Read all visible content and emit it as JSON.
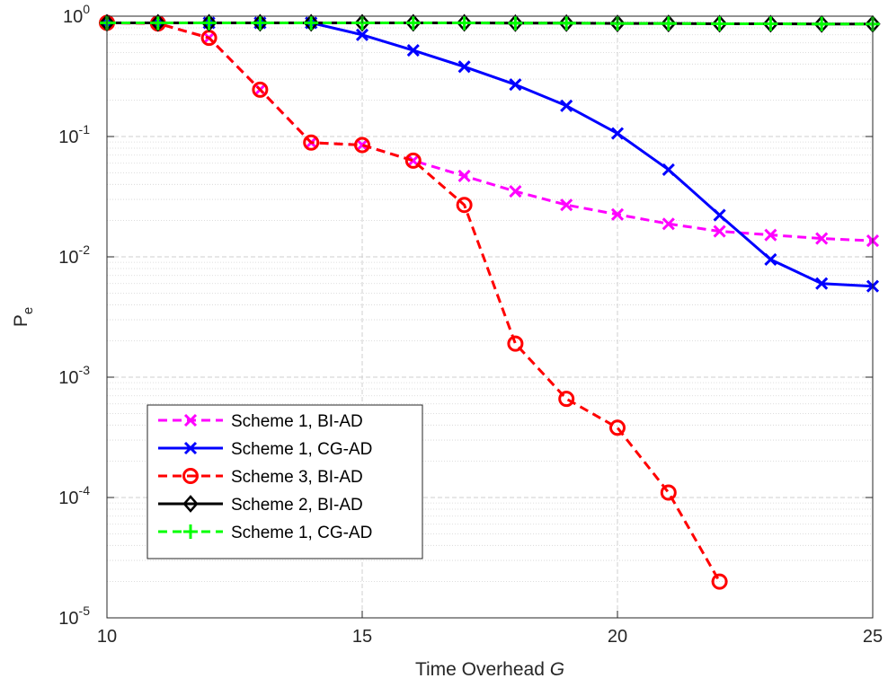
{
  "chart_data": {
    "type": "line",
    "title": "",
    "xlabel": {
      "text": "Time Overhead ",
      "var": "G"
    },
    "ylabel": {
      "text": "P",
      "sub": "e"
    },
    "xlim": [
      10,
      25
    ],
    "ylim": [
      1e-05,
      1
    ],
    "yscale": "log",
    "grid": true,
    "minor_grid": true,
    "legend_position": "bottom-left",
    "xticks": [
      10,
      15,
      20,
      25
    ],
    "yticks": [
      {
        "value": 1e-05,
        "base": "10",
        "exp": "-5"
      },
      {
        "value": 0.0001,
        "base": "10",
        "exp": "-4"
      },
      {
        "value": 0.001,
        "base": "10",
        "exp": "-3"
      },
      {
        "value": 0.01,
        "base": "10",
        "exp": "-2"
      },
      {
        "value": 0.1,
        "base": "10",
        "exp": "-1"
      },
      {
        "value": 1,
        "base": "10",
        "exp": "0"
      }
    ],
    "series": [
      {
        "name": "Scheme 1, BI-AD",
        "color": "#ff00ff",
        "dash": "dashed",
        "marker": "x",
        "x": [
          10,
          11,
          12,
          13,
          14,
          15,
          16,
          17,
          18,
          19,
          20,
          21,
          22,
          23,
          24,
          25
        ],
        "y": [
          0.88,
          0.87,
          0.66,
          0.245,
          0.089,
          0.085,
          0.063,
          0.047,
          0.035,
          0.027,
          0.0225,
          0.0188,
          0.0163,
          0.0152,
          0.0142,
          0.0136
        ]
      },
      {
        "name": "Scheme 1, CG-AD",
        "color": "#0000ff",
        "dash": "solid",
        "marker": "x",
        "x": [
          10,
          11,
          12,
          13,
          14,
          15,
          16,
          17,
          18,
          19,
          20,
          21,
          22,
          23,
          24,
          25
        ],
        "y": [
          0.88,
          0.88,
          0.88,
          0.88,
          0.88,
          0.7,
          0.52,
          0.38,
          0.27,
          0.18,
          0.106,
          0.053,
          0.0222,
          0.0095,
          0.006,
          0.0057
        ]
      },
      {
        "name": "Scheme 3, BI-AD",
        "color": "#ff0000",
        "dash": "dashed",
        "marker": "o",
        "x": [
          10,
          11,
          12,
          13,
          14,
          15,
          16,
          17,
          18,
          19,
          20,
          21,
          22
        ],
        "y": [
          0.88,
          0.87,
          0.66,
          0.245,
          0.089,
          0.085,
          0.063,
          0.027,
          0.0019,
          0.00066,
          0.00038,
          0.00011,
          2e-05
        ]
      },
      {
        "name": "Scheme 2, BI-AD",
        "color": "#000000",
        "dash": "solid",
        "marker": "diamond",
        "x": [
          10,
          11,
          12,
          13,
          14,
          15,
          16,
          17,
          18,
          19,
          20,
          21,
          22,
          23,
          24,
          25
        ],
        "y": [
          0.88,
          0.88,
          0.88,
          0.88,
          0.88,
          0.88,
          0.88,
          0.88,
          0.875,
          0.875,
          0.87,
          0.87,
          0.865,
          0.865,
          0.86,
          0.86
        ]
      },
      {
        "name": "Scheme 1, CG-AD",
        "color": "#00ff00",
        "dash": "dashed",
        "marker": "plus",
        "x": [
          10,
          11,
          12,
          13,
          14,
          15,
          16,
          17,
          18,
          19,
          20,
          21,
          22,
          23,
          24,
          25
        ],
        "y": [
          0.88,
          0.88,
          0.88,
          0.88,
          0.88,
          0.88,
          0.88,
          0.88,
          0.875,
          0.875,
          0.87,
          0.87,
          0.865,
          0.865,
          0.86,
          0.86
        ]
      }
    ]
  }
}
